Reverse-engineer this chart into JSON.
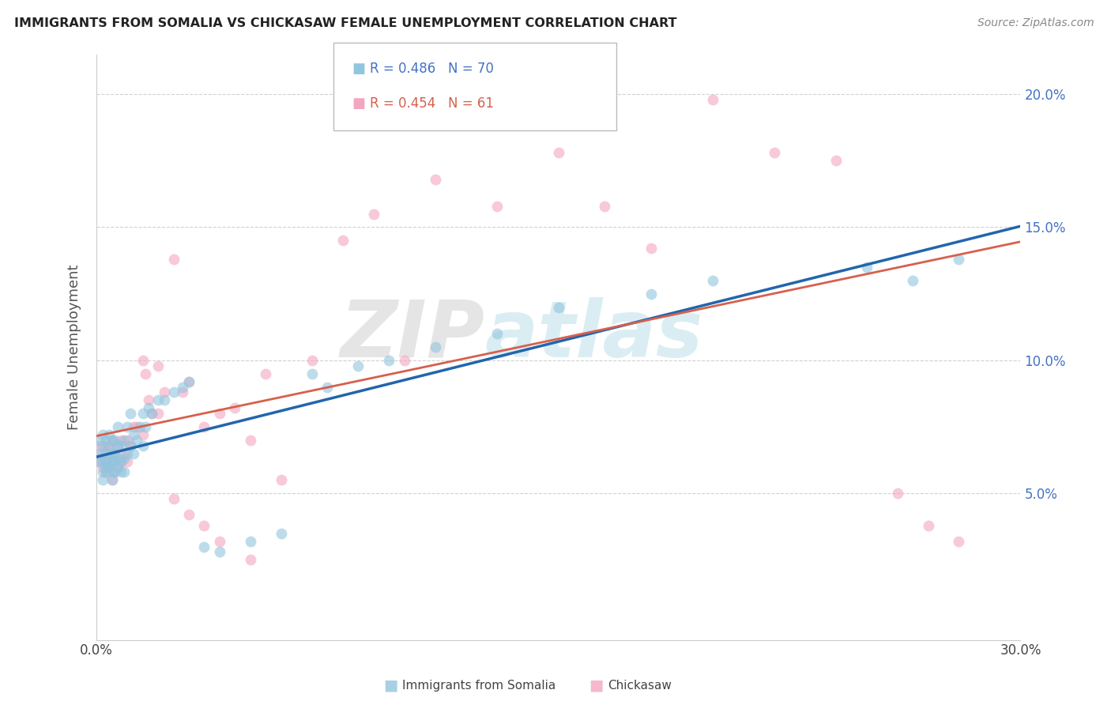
{
  "title": "IMMIGRANTS FROM SOMALIA VS CHICKASAW FEMALE UNEMPLOYMENT CORRELATION CHART",
  "source": "Source: ZipAtlas.com",
  "ylabel": "Female Unemployment",
  "R1": 0.486,
  "N1": 70,
  "R2": 0.454,
  "N2": 61,
  "legend_label1": "Immigrants from Somalia",
  "legend_label2": "Chickasaw",
  "color1": "#92c5de",
  "color2": "#f4a6c0",
  "line_color1": "#2166ac",
  "line_color2": "#d6604d",
  "xlim": [
    0.0,
    0.3
  ],
  "ylim": [
    -0.005,
    0.215
  ],
  "yticks": [
    0.05,
    0.1,
    0.15,
    0.2
  ],
  "ytick_labels": [
    "5.0%",
    "10.0%",
    "15.0%",
    "20.0%"
  ],
  "xticks": [
    0.0,
    0.05,
    0.1,
    0.15,
    0.2,
    0.25,
    0.3
  ],
  "background_color": "#ffffff",
  "grid_color": "#cccccc",
  "watermark_text": "ZIPatlas",
  "somalia_x": [
    0.001,
    0.001,
    0.001,
    0.002,
    0.002,
    0.002,
    0.002,
    0.002,
    0.003,
    0.003,
    0.003,
    0.003,
    0.003,
    0.004,
    0.004,
    0.004,
    0.004,
    0.005,
    0.005,
    0.005,
    0.005,
    0.005,
    0.006,
    0.006,
    0.006,
    0.006,
    0.007,
    0.007,
    0.007,
    0.007,
    0.008,
    0.008,
    0.008,
    0.009,
    0.009,
    0.009,
    0.01,
    0.01,
    0.011,
    0.011,
    0.012,
    0.012,
    0.013,
    0.014,
    0.015,
    0.015,
    0.016,
    0.017,
    0.018,
    0.02,
    0.022,
    0.025,
    0.028,
    0.03,
    0.035,
    0.04,
    0.05,
    0.06,
    0.07,
    0.075,
    0.085,
    0.095,
    0.11,
    0.13,
    0.15,
    0.18,
    0.2,
    0.25,
    0.265,
    0.28
  ],
  "somalia_y": [
    0.062,
    0.065,
    0.07,
    0.055,
    0.058,
    0.062,
    0.068,
    0.072,
    0.058,
    0.06,
    0.062,
    0.065,
    0.07,
    0.06,
    0.063,
    0.067,
    0.072,
    0.055,
    0.058,
    0.062,
    0.065,
    0.07,
    0.058,
    0.062,
    0.065,
    0.07,
    0.06,
    0.063,
    0.068,
    0.075,
    0.058,
    0.062,
    0.068,
    0.058,
    0.063,
    0.07,
    0.065,
    0.075,
    0.068,
    0.08,
    0.065,
    0.072,
    0.07,
    0.075,
    0.068,
    0.08,
    0.075,
    0.082,
    0.08,
    0.085,
    0.085,
    0.088,
    0.09,
    0.092,
    0.03,
    0.028,
    0.032,
    0.035,
    0.095,
    0.09,
    0.098,
    0.1,
    0.105,
    0.11,
    0.12,
    0.125,
    0.13,
    0.135,
    0.13,
    0.138
  ],
  "chickasaw_x": [
    0.001,
    0.001,
    0.002,
    0.002,
    0.003,
    0.003,
    0.003,
    0.004,
    0.004,
    0.005,
    0.005,
    0.005,
    0.006,
    0.006,
    0.007,
    0.007,
    0.008,
    0.008,
    0.009,
    0.01,
    0.01,
    0.011,
    0.012,
    0.013,
    0.015,
    0.016,
    0.017,
    0.018,
    0.02,
    0.022,
    0.025,
    0.028,
    0.03,
    0.035,
    0.04,
    0.045,
    0.05,
    0.055,
    0.06,
    0.07,
    0.08,
    0.09,
    0.1,
    0.11,
    0.13,
    0.15,
    0.165,
    0.18,
    0.2,
    0.22,
    0.24,
    0.26,
    0.27,
    0.28,
    0.015,
    0.02,
    0.025,
    0.03,
    0.035,
    0.04,
    0.05
  ],
  "chickasaw_y": [
    0.062,
    0.068,
    0.06,
    0.065,
    0.058,
    0.062,
    0.068,
    0.06,
    0.068,
    0.055,
    0.062,
    0.07,
    0.058,
    0.065,
    0.06,
    0.068,
    0.062,
    0.07,
    0.065,
    0.062,
    0.07,
    0.068,
    0.075,
    0.075,
    0.072,
    0.095,
    0.085,
    0.08,
    0.08,
    0.088,
    0.138,
    0.088,
    0.092,
    0.075,
    0.08,
    0.082,
    0.07,
    0.095,
    0.055,
    0.1,
    0.145,
    0.155,
    0.1,
    0.168,
    0.158,
    0.178,
    0.158,
    0.142,
    0.198,
    0.178,
    0.175,
    0.05,
    0.038,
    0.032,
    0.1,
    0.098,
    0.048,
    0.042,
    0.038,
    0.032,
    0.025
  ]
}
